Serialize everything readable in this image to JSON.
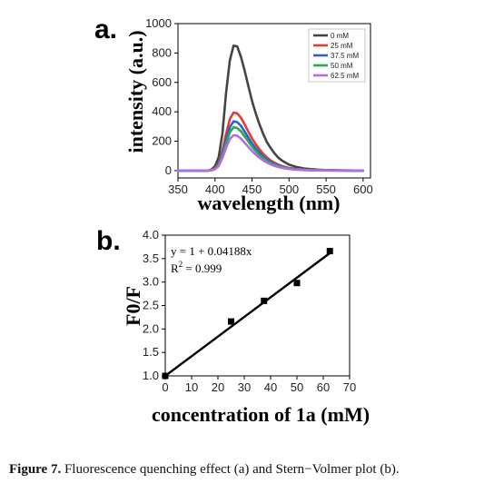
{
  "chart_data": [
    {
      "panel_label": "a.",
      "type": "line",
      "xlabel": "wavelength (nm)",
      "ylabel": "intensity (a.u.)",
      "xlim": [
        350,
        610
      ],
      "ylim": [
        -50,
        1000
      ],
      "xticks": [
        350,
        400,
        450,
        500,
        550,
        600
      ],
      "yticks": [
        0,
        200,
        400,
        600,
        800,
        1000
      ],
      "legend_position": "top-right",
      "x": [
        350,
        380,
        390,
        395,
        400,
        405,
        410,
        415,
        420,
        425,
        430,
        435,
        440,
        445,
        450,
        455,
        460,
        465,
        470,
        475,
        480,
        485,
        490,
        500,
        510,
        520,
        530,
        540,
        550,
        560,
        580,
        600
      ],
      "series": [
        {
          "name": "0 mM",
          "color": "#454545",
          "values": [
            0,
            0,
            0,
            6,
            30,
            90,
            250,
            530,
            750,
            850,
            845,
            775,
            680,
            575,
            475,
            390,
            315,
            250,
            195,
            155,
            120,
            90,
            70,
            40,
            25,
            15,
            10,
            6,
            4,
            3,
            1,
            0
          ]
        },
        {
          "name": "25 mM",
          "color": "#e53a3a",
          "values": [
            0,
            0,
            0,
            3,
            15,
            50,
            135,
            250,
            350,
            395,
            390,
            360,
            315,
            265,
            220,
            180,
            145,
            115,
            90,
            70,
            55,
            42,
            32,
            18,
            11,
            7,
            4,
            3,
            2,
            1,
            0,
            0
          ]
        },
        {
          "name": "37.5 mM",
          "color": "#2b63c4",
          "values": [
            0,
            0,
            0,
            2,
            12,
            42,
            115,
            210,
            295,
            335,
            330,
            305,
            265,
            225,
            185,
            152,
            122,
            97,
            76,
            59,
            46,
            35,
            27,
            15,
            9,
            6,
            3,
            2,
            1,
            1,
            0,
            0
          ]
        },
        {
          "name": "50 mM",
          "color": "#2aa85a",
          "values": [
            0,
            0,
            0,
            2,
            11,
            38,
            103,
            185,
            260,
            295,
            290,
            268,
            233,
            198,
            163,
            133,
            107,
            85,
            67,
            52,
            40,
            31,
            24,
            13,
            8,
            5,
            3,
            2,
            1,
            1,
            0,
            0
          ]
        },
        {
          "name": "62.5 mM",
          "color": "#b06ee0",
          "values": [
            0,
            0,
            0,
            2,
            9,
            30,
            85,
            155,
            215,
            240,
            237,
            218,
            190,
            161,
            133,
            109,
            88,
            70,
            55,
            43,
            33,
            25,
            19,
            11,
            6,
            4,
            2,
            1,
            1,
            0,
            0,
            0
          ]
        }
      ]
    },
    {
      "panel_label": "b.",
      "type": "scatter",
      "xlabel": "concentration of 1a (mM)",
      "ylabel": "F0/F",
      "xlim": [
        0,
        70
      ],
      "ylim": [
        1.0,
        4.0
      ],
      "xticks": [
        0,
        10,
        20,
        30,
        40,
        50,
        60,
        70
      ],
      "yticks": [
        1.0,
        1.5,
        2.0,
        2.5,
        3.0,
        3.5,
        4.0
      ],
      "points": [
        {
          "x": 0,
          "y": 1.0
        },
        {
          "x": 25,
          "y": 2.16
        },
        {
          "x": 37.5,
          "y": 2.6
        },
        {
          "x": 50,
          "y": 2.98
        },
        {
          "x": 62.5,
          "y": 3.66
        }
      ],
      "fit": {
        "intercept": 1,
        "slope": 0.04188
      },
      "annotation_equation": "y = 1 + 0.04188x",
      "annotation_r2_prefix": "R",
      "annotation_r2_sup": "2",
      "annotation_r2_value": " = 0.999",
      "marker_color": "#000000",
      "line_color": "#000000"
    }
  ],
  "caption": {
    "label": "Figure 7.",
    "text": " Fluorescence quenching effect (a) and Stern−Volmer plot (b)."
  }
}
